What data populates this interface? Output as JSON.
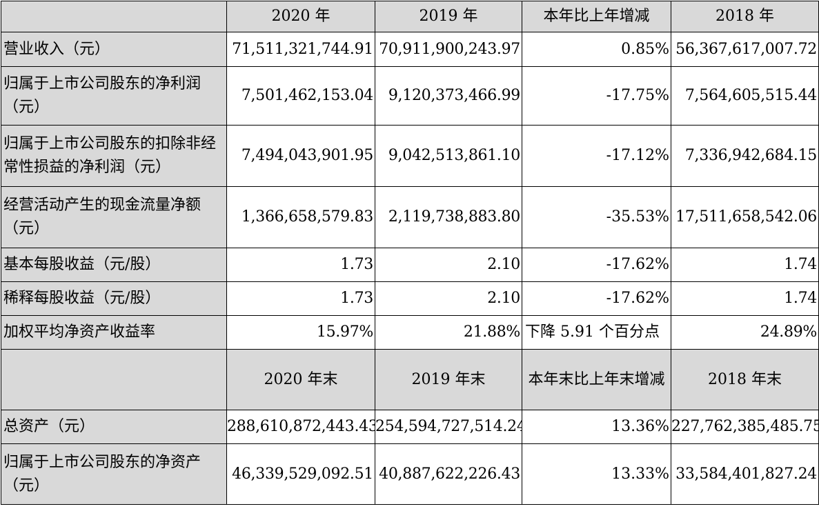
{
  "header1": [
    "2020 年",
    "2019 年",
    "本年比上年增减",
    "2018 年"
  ],
  "rows1": [
    {
      "label": "营业收入（元）",
      "v2020": "71,511,321,744.91",
      "v2019": "70,911,900,243.97",
      "change": "0.85%",
      "v2018": "56,367,617,007.72"
    },
    {
      "label": "归属于上市公司股东的净利润（元）",
      "v2020": "7,501,462,153.04",
      "v2019": "9,120,373,466.99",
      "change": "-17.75%",
      "v2018": "7,564,605,515.44"
    },
    {
      "label": "归属于上市公司股东的扣除非经常性损益的净利润（元）",
      "v2020": "7,494,043,901.95",
      "v2019": "9,042,513,861.10",
      "change": "-17.12%",
      "v2018": "7,336,942,684.15"
    },
    {
      "label": "经营活动产生的现金流量净额（元）",
      "v2020": "1,366,658,579.83",
      "v2019": "2,119,738,883.80",
      "change": "-35.53%",
      "v2018": "17,511,658,542.06"
    },
    {
      "label": "基本每股收益（元/股）",
      "v2020": "1.73",
      "v2019": "2.10",
      "change": "-17.62%",
      "v2018": "1.74"
    },
    {
      "label": "稀释每股收益（元/股）",
      "v2020": "1.73",
      "v2019": "2.10",
      "change": "-17.62%",
      "v2018": "1.74"
    },
    {
      "label": "加权平均净资产收益率",
      "v2020": "15.97%",
      "v2019": "21.88%",
      "change": "下降 5.91 个百分点",
      "v2018": "24.89%"
    }
  ],
  "header2": [
    "2020 年末",
    "2019 年末",
    "本年末比上年末增减",
    "2018 年末"
  ],
  "rows2": [
    {
      "label": "总资产（元）",
      "v2020": "288,610,872,443.43",
      "v2019": "254,594,727,514.24",
      "change": "13.36%",
      "v2018": "227,762,385,485.75"
    },
    {
      "label": "归属于上市公司股东的净资产（元）",
      "v2020": "46,339,529,092.51",
      "v2019": "40,887,622,226.43",
      "change": "13.33%",
      "v2018": "33,584,401,827.24"
    }
  ]
}
